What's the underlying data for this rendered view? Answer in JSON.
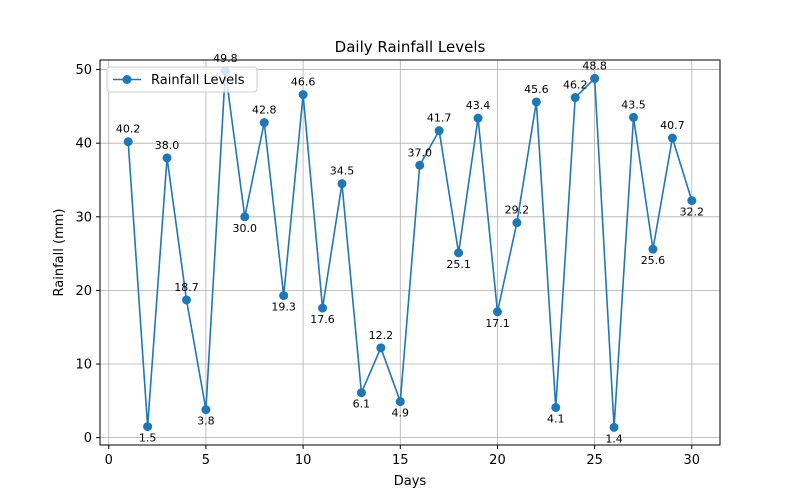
{
  "chart_data": {
    "type": "line",
    "title": "Daily Rainfall Levels",
    "xlabel": "Days",
    "ylabel": "Rainfall (mm)",
    "xlim": [
      -0.45,
      31.45
    ],
    "ylim": [
      -1.0,
      51.3
    ],
    "xticks": [
      0,
      5,
      10,
      15,
      20,
      25,
      30
    ],
    "yticks": [
      0,
      10,
      20,
      30,
      40,
      50
    ],
    "grid": true,
    "legend_position": "top-left",
    "series": [
      {
        "name": "Rainfall Levels",
        "color": "#1f77b4",
        "marker": "circle",
        "x": [
          1,
          2,
          3,
          4,
          5,
          6,
          7,
          8,
          9,
          10,
          11,
          12,
          13,
          14,
          15,
          16,
          17,
          18,
          19,
          20,
          21,
          22,
          23,
          24,
          25,
          26,
          27,
          28,
          29,
          30
        ],
        "values": [
          40.2,
          1.5,
          38.0,
          18.7,
          3.8,
          49.8,
          30.0,
          42.8,
          19.3,
          46.6,
          17.6,
          34.5,
          6.1,
          12.2,
          4.9,
          37.0,
          41.7,
          25.1,
          43.4,
          17.1,
          29.2,
          45.6,
          4.1,
          46.2,
          48.8,
          1.4,
          43.5,
          25.6,
          40.7,
          32.2
        ]
      }
    ],
    "data_labels": [
      "40.2",
      "1.5",
      "38.0",
      "18.7",
      "3.8",
      "49.8",
      "30.0",
      "42.8",
      "19.3",
      "46.6",
      "17.6",
      "34.5",
      "6.1",
      "12.2",
      "4.9",
      "37.0",
      "41.7",
      "25.1",
      "43.4",
      "17.1",
      "29.2",
      "45.6",
      "4.1",
      "46.2",
      "48.8",
      "1.4",
      "43.5",
      "25.6",
      "40.7",
      "32.2"
    ]
  }
}
